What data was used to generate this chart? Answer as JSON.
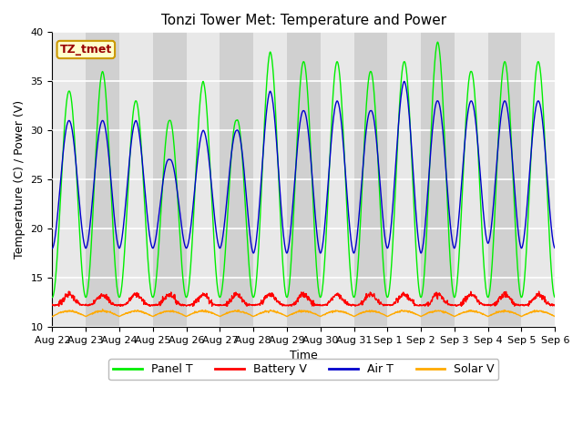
{
  "title": "Tonzi Tower Met: Temperature and Power",
  "xlabel": "Time",
  "ylabel": "Temperature (C) / Power (V)",
  "ylim": [
    10,
    40
  ],
  "yticks": [
    10,
    15,
    20,
    25,
    30,
    35,
    40
  ],
  "x_labels": [
    "Aug 22",
    "Aug 23",
    "Aug 24",
    "Aug 25",
    "Aug 26",
    "Aug 27",
    "Aug 28",
    "Aug 29",
    "Aug 30",
    "Aug 31",
    "Sep 1",
    "Sep 2",
    "Sep 3",
    "Sep 4",
    "Sep 5",
    "Sep 6"
  ],
  "annotation_text": "TZ_tmet",
  "annotation_color": "#990000",
  "annotation_bg": "#ffffcc",
  "annotation_border": "#cc9900",
  "panel_color": "#00ee00",
  "battery_color": "#ff0000",
  "air_color": "#0000cc",
  "solar_color": "#ffaa00",
  "bg_color_light": "#e8e8e8",
  "bg_color_dark": "#d0d0d0",
  "legend_labels": [
    "Panel T",
    "Battery V",
    "Air T",
    "Solar V"
  ],
  "title_fontsize": 11,
  "axis_fontsize": 9,
  "tick_fontsize": 8,
  "n_days": 15,
  "pts_per_day": 96,
  "panel_peaks": [
    34,
    36,
    33,
    31,
    35,
    31,
    38,
    37,
    37,
    36,
    37,
    39,
    36,
    37,
    37
  ],
  "panel_trough": 13.0,
  "air_peaks": [
    31,
    31,
    31,
    27,
    30,
    30,
    34,
    32,
    33,
    32,
    35,
    33,
    33,
    33,
    33
  ],
  "air_trough": [
    18,
    18,
    18,
    18,
    18,
    18,
    17,
    18,
    17,
    18,
    18,
    17,
    19,
    18,
    18
  ],
  "battery_base": 12.2,
  "battery_peak": 13.3,
  "solar_base": 11.05,
  "solar_peak": 11.6
}
